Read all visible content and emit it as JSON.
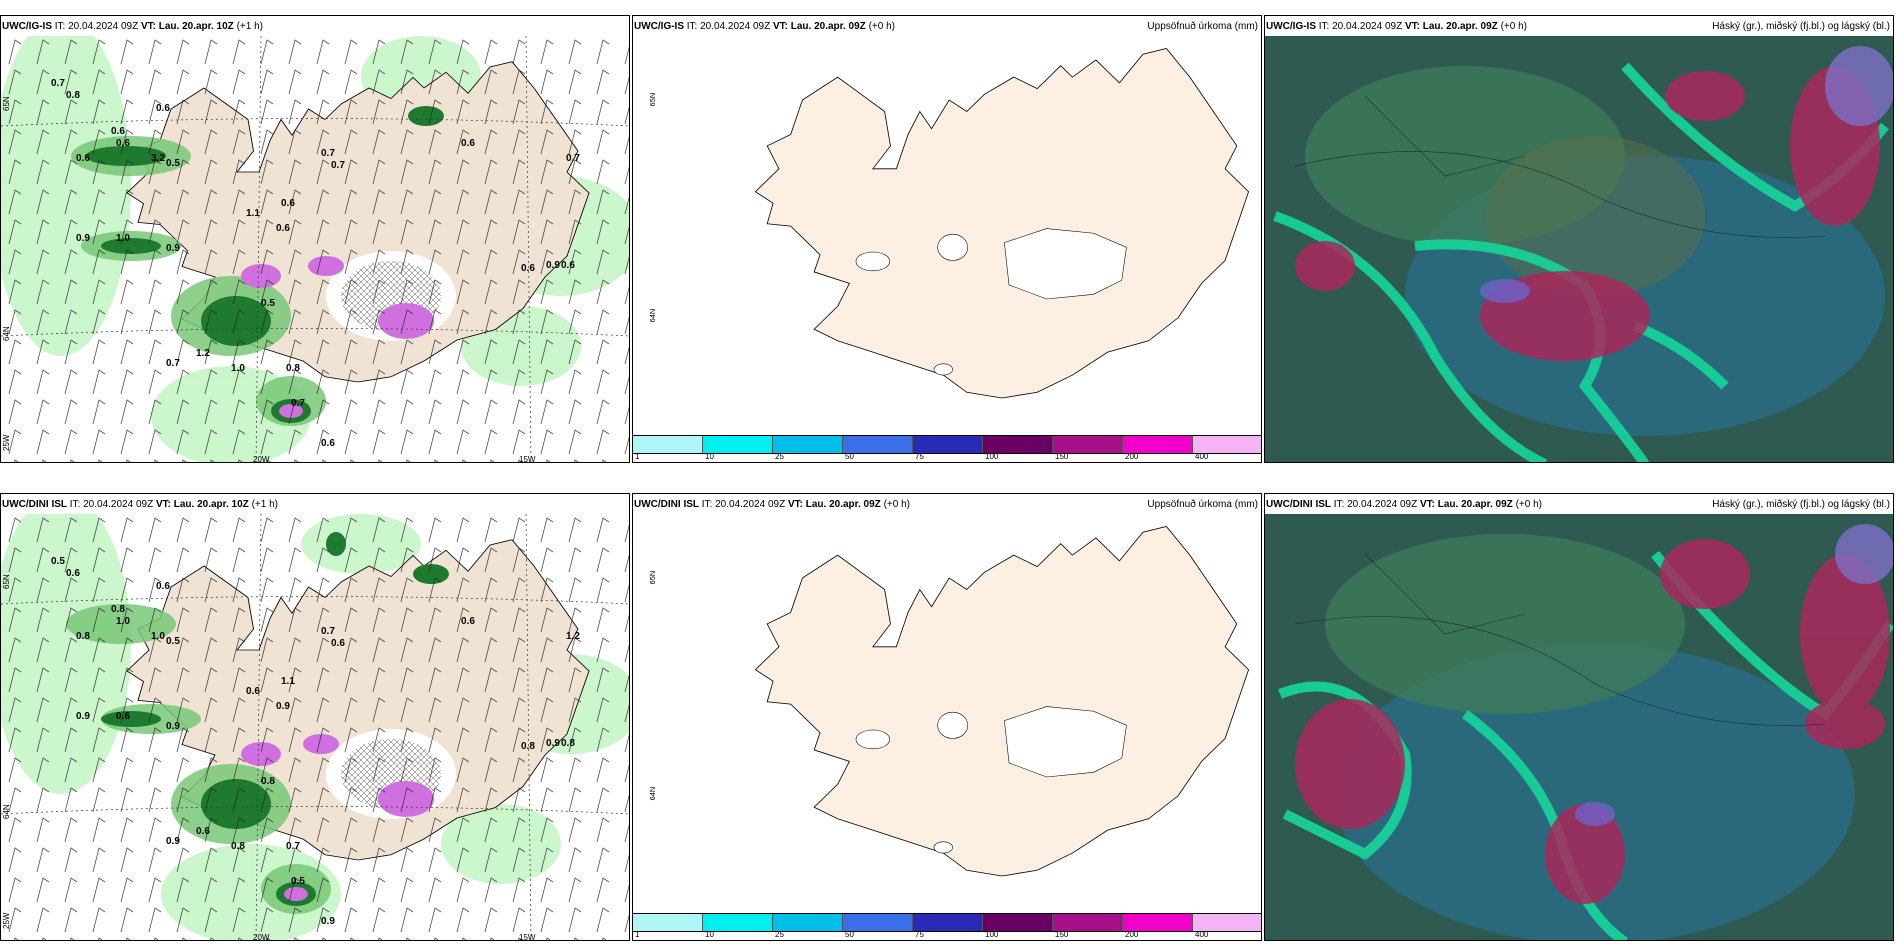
{
  "rows": [
    {
      "model": "UWC/IG-IS",
      "precip": {
        "model": "UWC/IG-IS",
        "it_label": "IT:",
        "it": "20.04.2024 09Z",
        "vt_label": "VT:",
        "vt": "Lau. 20.apr. 10Z",
        "lead": "(+1 h)",
        "lat_labels": [
          "65N",
          "64N"
        ],
        "lon_labels": [
          "20W",
          "15W"
        ],
        "corner_label": "25W",
        "values": [
          "0.7",
          "0.8",
          "0.6",
          "0.6",
          "0.6",
          "0.6",
          "3.2",
          "0.5",
          "0.9",
          "1.0",
          "0.9",
          "0.6",
          "0.7",
          "0.7",
          "1.1",
          "0.6",
          "0.5",
          "1.2",
          "0.7",
          "1.0",
          "0.8",
          "0.7",
          "0.6",
          "0.6",
          "0.9",
          "0.6",
          "0.6",
          "0.7"
        ]
      },
      "accum": {
        "model": "UWC/IG-IS",
        "it_label": "IT:",
        "it": "20.04.2024 09Z",
        "vt_label": "VT:",
        "vt": "Lau. 20.apr. 09Z",
        "lead": "(+0 h)",
        "title": "Uppsöfnuð úrkoma (mm)",
        "lat_labels": [
          "65N",
          "64N"
        ],
        "scale": [
          "1",
          "10",
          "25",
          "50",
          "75",
          "100",
          "150",
          "200",
          "400"
        ],
        "scale_colors": [
          "#b0f6f6",
          "#00f0f0",
          "#00c0ea",
          "#3b6fe8",
          "#2a2ab8",
          "#6a0064",
          "#a8108a",
          "#f000c8",
          "#f4b4f4"
        ]
      },
      "cloud": {
        "model": "UWC/IG-IS",
        "it_label": "IT:",
        "it": "20.04.2024 09Z",
        "vt_label": "VT:",
        "vt": "Lau. 20.apr. 09Z",
        "lead": "(+0 h)",
        "title": "Háský (gr.), miðský (fj.bl.) og lágský (bl.)"
      }
    },
    {
      "model": "UWC/DINI ISL",
      "precip": {
        "model": "UWC/DINI ISL",
        "it_label": "IT:",
        "it": "20.04.2024 09Z",
        "vt_label": "VT:",
        "vt": "Lau. 20.apr. 10Z",
        "lead": "(+1 h)",
        "lat_labels": [
          "65N",
          "64N"
        ],
        "lon_labels": [
          "20W",
          "15W"
        ],
        "corner_label": "25W",
        "values": [
          "0.5",
          "0.6",
          "0.6",
          "0.8",
          "1.0",
          "0.8",
          "1.0",
          "0.5",
          "0.9",
          "0.6",
          "0.9",
          "1.1",
          "0.7",
          "0.6",
          "0.6",
          "0.9",
          "0.8",
          "0.6",
          "0.9",
          "0.8",
          "0.7",
          "0.5",
          "0.9",
          "0.8",
          "0.9",
          "0.8",
          "0.6",
          "1.2"
        ]
      },
      "accum": {
        "model": "UWC/DINI ISL",
        "it_label": "IT:",
        "it": "20.04.2024 09Z",
        "vt_label": "VT:",
        "vt": "Lau. 20.apr. 09Z",
        "lead": "(+0 h)",
        "title": "Uppsöfnuð úrkoma (mm)",
        "lat_labels": [
          "65N",
          "64N"
        ],
        "scale": [
          "1",
          "10",
          "25",
          "50",
          "75",
          "100",
          "150",
          "200",
          "400"
        ],
        "scale_colors": [
          "#b0f6f6",
          "#00f0f0",
          "#00c0ea",
          "#3b6fe8",
          "#2a2ab8",
          "#6a0064",
          "#a8108a",
          "#f000c8",
          "#f4b4f4"
        ]
      },
      "cloud": {
        "model": "UWC/DINI ISL",
        "it_label": "IT:",
        "it": "20.04.2024 09Z",
        "vt_label": "VT:",
        "vt": "Lau. 20.apr. 09Z",
        "lead": "(+0 h)",
        "title": "Háský (gr.), miðský (fj.bl.) og lágský (bl.)"
      }
    }
  ]
}
